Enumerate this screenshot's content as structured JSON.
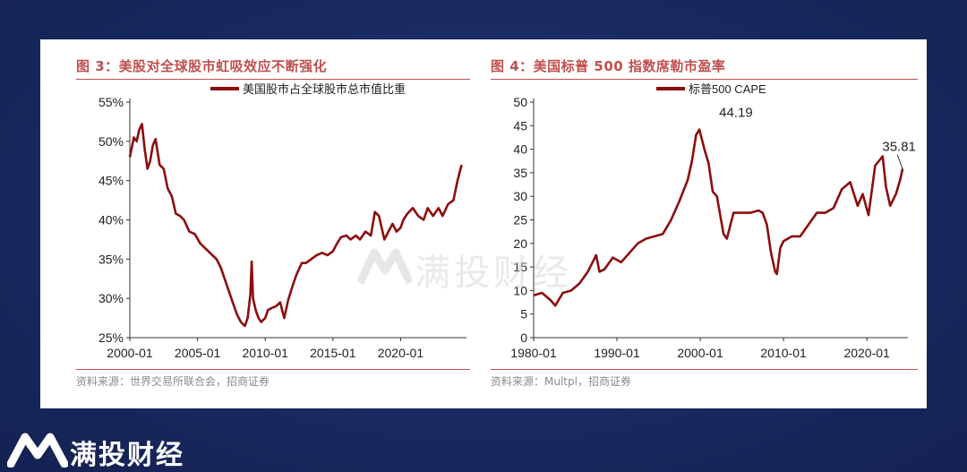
{
  "brand": {
    "name": "满投财经",
    "watermark_text": "满投财经"
  },
  "colors": {
    "accent": "#c0504d",
    "series": "#8b0e0e",
    "background": "#1a2a5e"
  },
  "chart_data": [
    {
      "type": "line",
      "title": "图 3：美股对全球股市虹吸效应不断强化",
      "legend": "美国股市占全球股市总市值比重",
      "legend_position": "top",
      "source": "资料来源：世界交易所联合会，招商证券",
      "xlabel": "",
      "ylabel": "",
      "xlim": [
        2000.0,
        2024.6
      ],
      "ylim": [
        25,
        55
      ],
      "y_ticks": [
        "25%",
        "30%",
        "35%",
        "40%",
        "45%",
        "50%",
        "55%"
      ],
      "y_tick_values": [
        25,
        30,
        35,
        40,
        45,
        50,
        55
      ],
      "x_ticks": [
        "2000-01",
        "2005-01",
        "2010-01",
        "2015-01",
        "2020-01"
      ],
      "x_tick_values": [
        2000,
        2005,
        2010,
        2015,
        2020
      ],
      "grid": false,
      "series": [
        {
          "name": "美国股市占全球股市总市值比重",
          "x": [
            2000.0,
            2000.3,
            2000.5,
            2000.7,
            2000.9,
            2001.1,
            2001.3,
            2001.5,
            2001.7,
            2001.9,
            2002.2,
            2002.5,
            2002.8,
            2003.1,
            2003.4,
            2003.7,
            2004.0,
            2004.4,
            2004.8,
            2005.2,
            2005.5,
            2005.8,
            2006.1,
            2006.4,
            2006.7,
            2007.0,
            2007.3,
            2007.6,
            2007.9,
            2008.2,
            2008.5,
            2008.7,
            2008.9,
            2009.0,
            2009.1,
            2009.3,
            2009.5,
            2009.7,
            2010.0,
            2010.2,
            2010.5,
            2010.8,
            2011.1,
            2011.4,
            2011.7,
            2012.0,
            2012.3,
            2012.7,
            2013.0,
            2013.4,
            2013.8,
            2014.2,
            2014.6,
            2015.0,
            2015.3,
            2015.6,
            2016.0,
            2016.3,
            2016.7,
            2017.0,
            2017.4,
            2017.8,
            2018.1,
            2018.4,
            2018.8,
            2019.1,
            2019.4,
            2019.7,
            2020.0,
            2020.2,
            2020.5,
            2020.9,
            2021.3,
            2021.7,
            2022.0,
            2022.4,
            2022.8,
            2023.1,
            2023.5,
            2023.9,
            2024.2,
            2024.5
          ],
          "values": [
            48.0,
            50.5,
            50.0,
            51.5,
            52.2,
            49.0,
            46.5,
            47.5,
            49.5,
            50.3,
            47.0,
            46.5,
            44.0,
            43.0,
            40.8,
            40.5,
            40.0,
            38.5,
            38.2,
            37.0,
            36.5,
            36.0,
            35.5,
            35.0,
            34.0,
            32.5,
            31.0,
            29.5,
            28.0,
            27.0,
            26.5,
            27.5,
            30.5,
            34.7,
            30.0,
            28.5,
            27.5,
            27.0,
            27.5,
            28.5,
            28.8,
            29.0,
            29.5,
            27.5,
            29.8,
            31.5,
            33.0,
            34.5,
            34.5,
            35.0,
            35.5,
            35.8,
            35.5,
            36.0,
            37.0,
            37.8,
            38.0,
            37.5,
            38.0,
            37.5,
            38.5,
            38.0,
            41.0,
            40.5,
            37.5,
            38.5,
            39.5,
            38.5,
            39.0,
            40.0,
            40.8,
            41.5,
            40.5,
            40.0,
            41.5,
            40.5,
            41.5,
            40.5,
            42.0,
            42.5,
            45.0,
            47.0
          ]
        }
      ]
    },
    {
      "type": "line",
      "title": "图 4：美国标普 500 指数席勒市盈率",
      "legend": "标普500 CAPE",
      "legend_position": "top-left",
      "source": "资料来源：Multpl，招商证券",
      "xlabel": "",
      "ylabel": "",
      "xlim": [
        1980.0,
        2024.5
      ],
      "ylim": [
        0,
        50
      ],
      "y_ticks": [
        "0",
        "5",
        "10",
        "15",
        "20",
        "25",
        "30",
        "35",
        "40",
        "45",
        "50"
      ],
      "y_tick_values": [
        0,
        5,
        10,
        15,
        20,
        25,
        30,
        35,
        40,
        45,
        50
      ],
      "x_ticks": [
        "1980-01",
        "1990-01",
        "2000-01",
        "2010-01",
        "2020-01"
      ],
      "x_tick_values": [
        1980,
        1990,
        2000,
        2010,
        2020
      ],
      "grid": false,
      "annotations": [
        {
          "label": "44.19",
          "x": 1999.9,
          "y": 44.19
        },
        {
          "label": "35.81",
          "x": 2024.3,
          "y": 35.81
        }
      ],
      "series": [
        {
          "name": "标普500 CAPE",
          "x": [
            1980.0,
            1981.0,
            1982.0,
            1982.6,
            1983.5,
            1984.5,
            1985.5,
            1986.5,
            1987.5,
            1987.9,
            1988.5,
            1989.5,
            1990.5,
            1991.5,
            1992.5,
            1993.5,
            1994.5,
            1995.5,
            1996.5,
            1997.5,
            1998.5,
            1999.0,
            1999.5,
            1999.9,
            2000.5,
            2001.0,
            2001.5,
            2002.0,
            2002.5,
            2002.8,
            2003.2,
            2004.0,
            2005.0,
            2006.0,
            2007.0,
            2007.5,
            2008.0,
            2008.5,
            2009.0,
            2009.2,
            2009.6,
            2010.0,
            2011.0,
            2012.0,
            2013.0,
            2014.0,
            2015.0,
            2016.0,
            2017.0,
            2018.0,
            2018.9,
            2019.5,
            2020.2,
            2021.0,
            2021.9,
            2022.3,
            2022.8,
            2023.5,
            2024.0,
            2024.3
          ],
          "values": [
            9.0,
            9.5,
            8.0,
            6.8,
            9.5,
            10.0,
            11.5,
            14.0,
            17.5,
            14.0,
            14.5,
            17.0,
            16.0,
            18.0,
            20.0,
            21.0,
            21.5,
            22.0,
            25.0,
            29.0,
            33.5,
            37.5,
            43.0,
            44.19,
            40.0,
            37.0,
            31.0,
            30.0,
            25.0,
            22.0,
            21.0,
            26.5,
            26.5,
            26.5,
            27.0,
            26.5,
            24.0,
            18.0,
            14.0,
            13.5,
            19.0,
            20.5,
            21.5,
            21.5,
            24.0,
            26.5,
            26.5,
            27.5,
            31.5,
            33.0,
            28.0,
            30.5,
            26.0,
            36.5,
            38.5,
            32.0,
            28.0,
            30.5,
            33.5,
            35.81
          ]
        }
      ]
    }
  ]
}
